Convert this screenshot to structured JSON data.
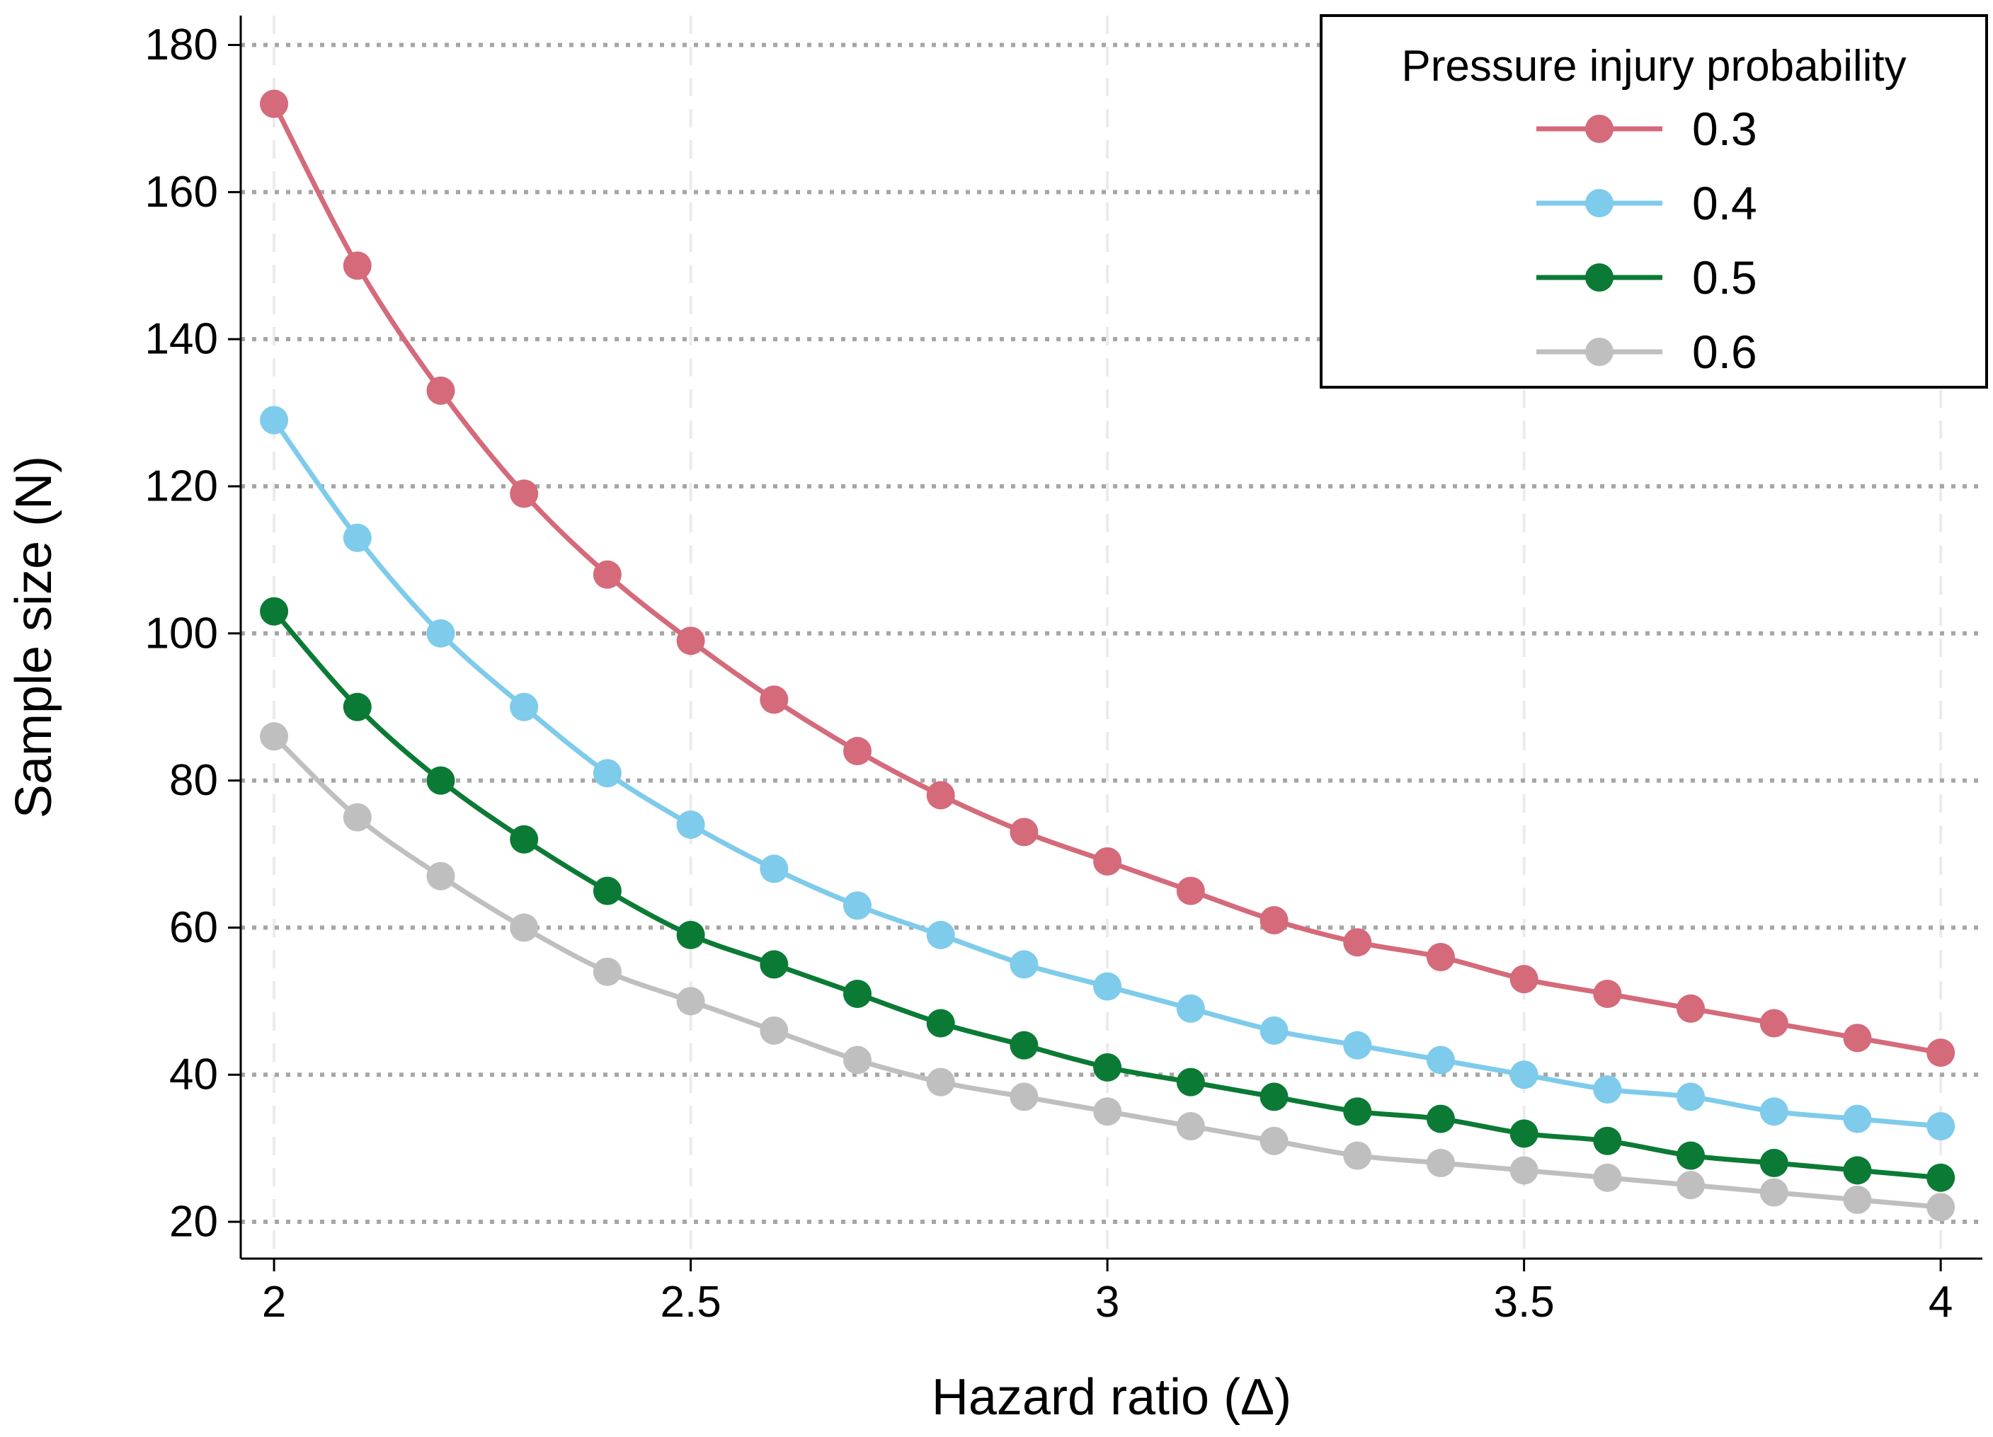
{
  "chart_data": {
    "type": "line",
    "title": "",
    "xlabel": "Hazard ratio (Δ)",
    "ylabel": "Sample size (N)",
    "xlim": [
      1.96,
      4.05
    ],
    "ylim": [
      15,
      184
    ],
    "x_ticks": [
      2,
      2.5,
      3,
      3.5,
      4
    ],
    "x_tick_labels": [
      "2",
      "2.5",
      "3",
      "3.5",
      "4"
    ],
    "y_ticks": [
      20,
      40,
      60,
      80,
      100,
      120,
      140,
      160,
      180
    ],
    "y_tick_labels": [
      "20",
      "40",
      "60",
      "80",
      "100",
      "120",
      "140",
      "160",
      "180"
    ],
    "grid": {
      "horizontal": "dotted",
      "vertical": "dashed"
    },
    "legend": {
      "title": "Pressure injury probability",
      "position": "top-right"
    },
    "x": [
      2,
      2.1,
      2.2,
      2.3,
      2.4,
      2.5,
      2.6,
      2.7,
      2.8,
      2.9,
      3,
      3.1,
      3.2,
      3.3,
      3.4,
      3.5,
      3.6,
      3.7,
      3.8,
      3.9,
      4
    ],
    "series": [
      {
        "name": "0.3",
        "color": "#d46a7a",
        "values": [
          172,
          150,
          133,
          119,
          108,
          99,
          91,
          84,
          78,
          73,
          69,
          65,
          61,
          58,
          56,
          53,
          51,
          49,
          47,
          45,
          43
        ]
      },
      {
        "name": "0.4",
        "color": "#7ecbeb",
        "values": [
          129,
          113,
          100,
          90,
          81,
          74,
          68,
          63,
          59,
          55,
          52,
          49,
          46,
          44,
          42,
          40,
          38,
          37,
          35,
          34,
          33
        ]
      },
      {
        "name": "0.5",
        "color": "#0b7a35",
        "values": [
          103,
          90,
          80,
          72,
          65,
          59,
          55,
          51,
          47,
          44,
          41,
          39,
          37,
          35,
          34,
          32,
          31,
          29,
          28,
          27,
          26
        ]
      },
      {
        "name": "0.6",
        "color": "#bfbfbf",
        "values": [
          86,
          75,
          67,
          60,
          54,
          50,
          46,
          42,
          39,
          37,
          35,
          33,
          31,
          29,
          28,
          27,
          26,
          25,
          24,
          23,
          22
        ]
      }
    ]
  }
}
